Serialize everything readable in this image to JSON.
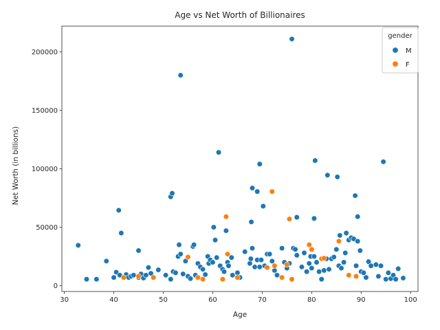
{
  "chart_data": {
    "type": "scatter",
    "title": "Age vs Net Worth of Billionaires",
    "xlabel": "Age",
    "ylabel": "Net Worth (in billions)",
    "xlim": [
      29.5,
      101.5
    ],
    "ylim": [
      -5000,
      222000
    ],
    "xticks": [
      30,
      40,
      50,
      60,
      70,
      80,
      90,
      100
    ],
    "yticks": [
      0,
      50000,
      100000,
      150000,
      200000
    ],
    "grid": false,
    "legend": {
      "title": "gender",
      "placement": "top-right"
    },
    "series": [
      {
        "name": "M",
        "color": "#1f77b4",
        "points": [
          [
            32.8,
            34500
          ],
          [
            34.5,
            5500
          ],
          [
            36.5,
            5500
          ],
          [
            38.5,
            21000
          ],
          [
            40,
            7000
          ],
          [
            40.5,
            11500
          ],
          [
            41,
            64500
          ],
          [
            41.2,
            9000
          ],
          [
            41.5,
            45000
          ],
          [
            42,
            7000
          ],
          [
            42.5,
            9500
          ],
          [
            43,
            7000
          ],
          [
            43.5,
            8000
          ],
          [
            44,
            9000
          ],
          [
            45,
            30000
          ],
          [
            45,
            7000
          ],
          [
            45.5,
            10000
          ],
          [
            46,
            6500
          ],
          [
            46.5,
            9000
          ],
          [
            47,
            15500
          ],
          [
            47.5,
            10500
          ],
          [
            49,
            13500
          ],
          [
            50.5,
            9000
          ],
          [
            51.5,
            76000
          ],
          [
            51.8,
            79000
          ],
          [
            51.5,
            5500
          ],
          [
            52,
            12000
          ],
          [
            52.5,
            11000
          ],
          [
            53,
            25000
          ],
          [
            53.2,
            35000
          ],
          [
            53.5,
            180000
          ],
          [
            53.5,
            27000
          ],
          [
            54,
            10000
          ],
          [
            54.5,
            21000
          ],
          [
            55,
            8000
          ],
          [
            55.5,
            6000
          ],
          [
            56,
            33500
          ],
          [
            56.2,
            35000
          ],
          [
            56.5,
            9000
          ],
          [
            57,
            19000
          ],
          [
            57.5,
            16000
          ],
          [
            58,
            14000
          ],
          [
            58.5,
            9500
          ],
          [
            59,
            25000
          ],
          [
            59.2,
            19000
          ],
          [
            59.5,
            22000
          ],
          [
            60,
            20000
          ],
          [
            60.2,
            50000
          ],
          [
            60.5,
            39000
          ],
          [
            60.8,
            24000
          ],
          [
            61.2,
            114000
          ],
          [
            61.5,
            17000
          ],
          [
            62,
            14000
          ],
          [
            62.3,
            12000
          ],
          [
            62.7,
            47000
          ],
          [
            63,
            20000
          ],
          [
            63.2,
            17000
          ],
          [
            63.8,
            24000
          ],
          [
            64,
            9000
          ],
          [
            65,
            11000
          ],
          [
            65.5,
            7000
          ],
          [
            66.5,
            29000
          ],
          [
            67.5,
            19000
          ],
          [
            67.7,
            23000
          ],
          [
            67.8,
            54500
          ],
          [
            68,
            83500
          ],
          [
            68,
            32000
          ],
          [
            68.5,
            16000
          ],
          [
            69,
            80500
          ],
          [
            69,
            22000
          ],
          [
            69.5,
            104000
          ],
          [
            69.5,
            16000
          ],
          [
            69.8,
            22000
          ],
          [
            70.2,
            68000
          ],
          [
            70.5,
            17000
          ],
          [
            71,
            27000
          ],
          [
            71.5,
            27000
          ],
          [
            72,
            21000
          ],
          [
            72.5,
            13000
          ],
          [
            73,
            9000
          ],
          [
            74,
            32000
          ],
          [
            74.5,
            20000
          ],
          [
            75,
            15000
          ],
          [
            75.5,
            19000
          ],
          [
            76,
            211000
          ],
          [
            76.3,
            32000
          ],
          [
            76.7,
            31000
          ],
          [
            77,
            58500
          ],
          [
            77,
            26000
          ],
          [
            78,
            16000
          ],
          [
            78.5,
            28000
          ],
          [
            79,
            12000
          ],
          [
            79.5,
            19000
          ],
          [
            79.8,
            25000
          ],
          [
            80,
            15000
          ],
          [
            80.5,
            57500
          ],
          [
            80.5,
            25000
          ],
          [
            80.7,
            107000
          ],
          [
            81,
            20000
          ],
          [
            81.5,
            12000
          ],
          [
            82,
            5500
          ],
          [
            82.5,
            13000
          ],
          [
            83,
            23000
          ],
          [
            83.2,
            94500
          ],
          [
            83.5,
            14000
          ],
          [
            84,
            23000
          ],
          [
            84.5,
            24500
          ],
          [
            85,
            31000
          ],
          [
            85.2,
            93000
          ],
          [
            85.5,
            17000
          ],
          [
            85.7,
            43000
          ],
          [
            86,
            15000
          ],
          [
            86.5,
            20000
          ],
          [
            86.8,
            28000
          ],
          [
            87,
            45000
          ],
          [
            87.5,
            39000
          ],
          [
            88,
            41000
          ],
          [
            88.5,
            40000
          ],
          [
            88.8,
            77000
          ],
          [
            89,
            17000
          ],
          [
            89.3,
            59000
          ],
          [
            89.3,
            38000
          ],
          [
            89.8,
            30000
          ],
          [
            90,
            12000
          ],
          [
            90.5,
            11000
          ],
          [
            91,
            7000
          ],
          [
            91.5,
            20500
          ],
          [
            92,
            17000
          ],
          [
            93,
            18000
          ],
          [
            93.5,
            8000
          ],
          [
            94,
            17000
          ],
          [
            94.5,
            106000
          ],
          [
            95,
            5500
          ],
          [
            95.5,
            11000
          ],
          [
            96,
            6000
          ],
          [
            96.5,
            9000
          ],
          [
            97,
            5500
          ],
          [
            97.5,
            14500
          ],
          [
            98.5,
            6500
          ]
        ]
      },
      {
        "name": "F",
        "color": "#ff7f0e",
        "points": [
          [
            42,
            7000
          ],
          [
            45,
            8000
          ],
          [
            48,
            7000
          ],
          [
            55,
            24500
          ],
          [
            57,
            7000
          ],
          [
            58,
            5500
          ],
          [
            62,
            5500
          ],
          [
            62.7,
            59000
          ],
          [
            63,
            27000
          ],
          [
            65,
            7000
          ],
          [
            71,
            15500
          ],
          [
            72,
            80500
          ],
          [
            72.5,
            17000
          ],
          [
            74,
            7000
          ],
          [
            75,
            18000
          ],
          [
            75.5,
            57000
          ],
          [
            76,
            5500
          ],
          [
            79.5,
            35000
          ],
          [
            80,
            31000
          ],
          [
            82,
            23000
          ],
          [
            82.5,
            23500
          ],
          [
            85.5,
            38000
          ],
          [
            87.5,
            9000
          ],
          [
            89,
            8000
          ]
        ]
      }
    ]
  }
}
